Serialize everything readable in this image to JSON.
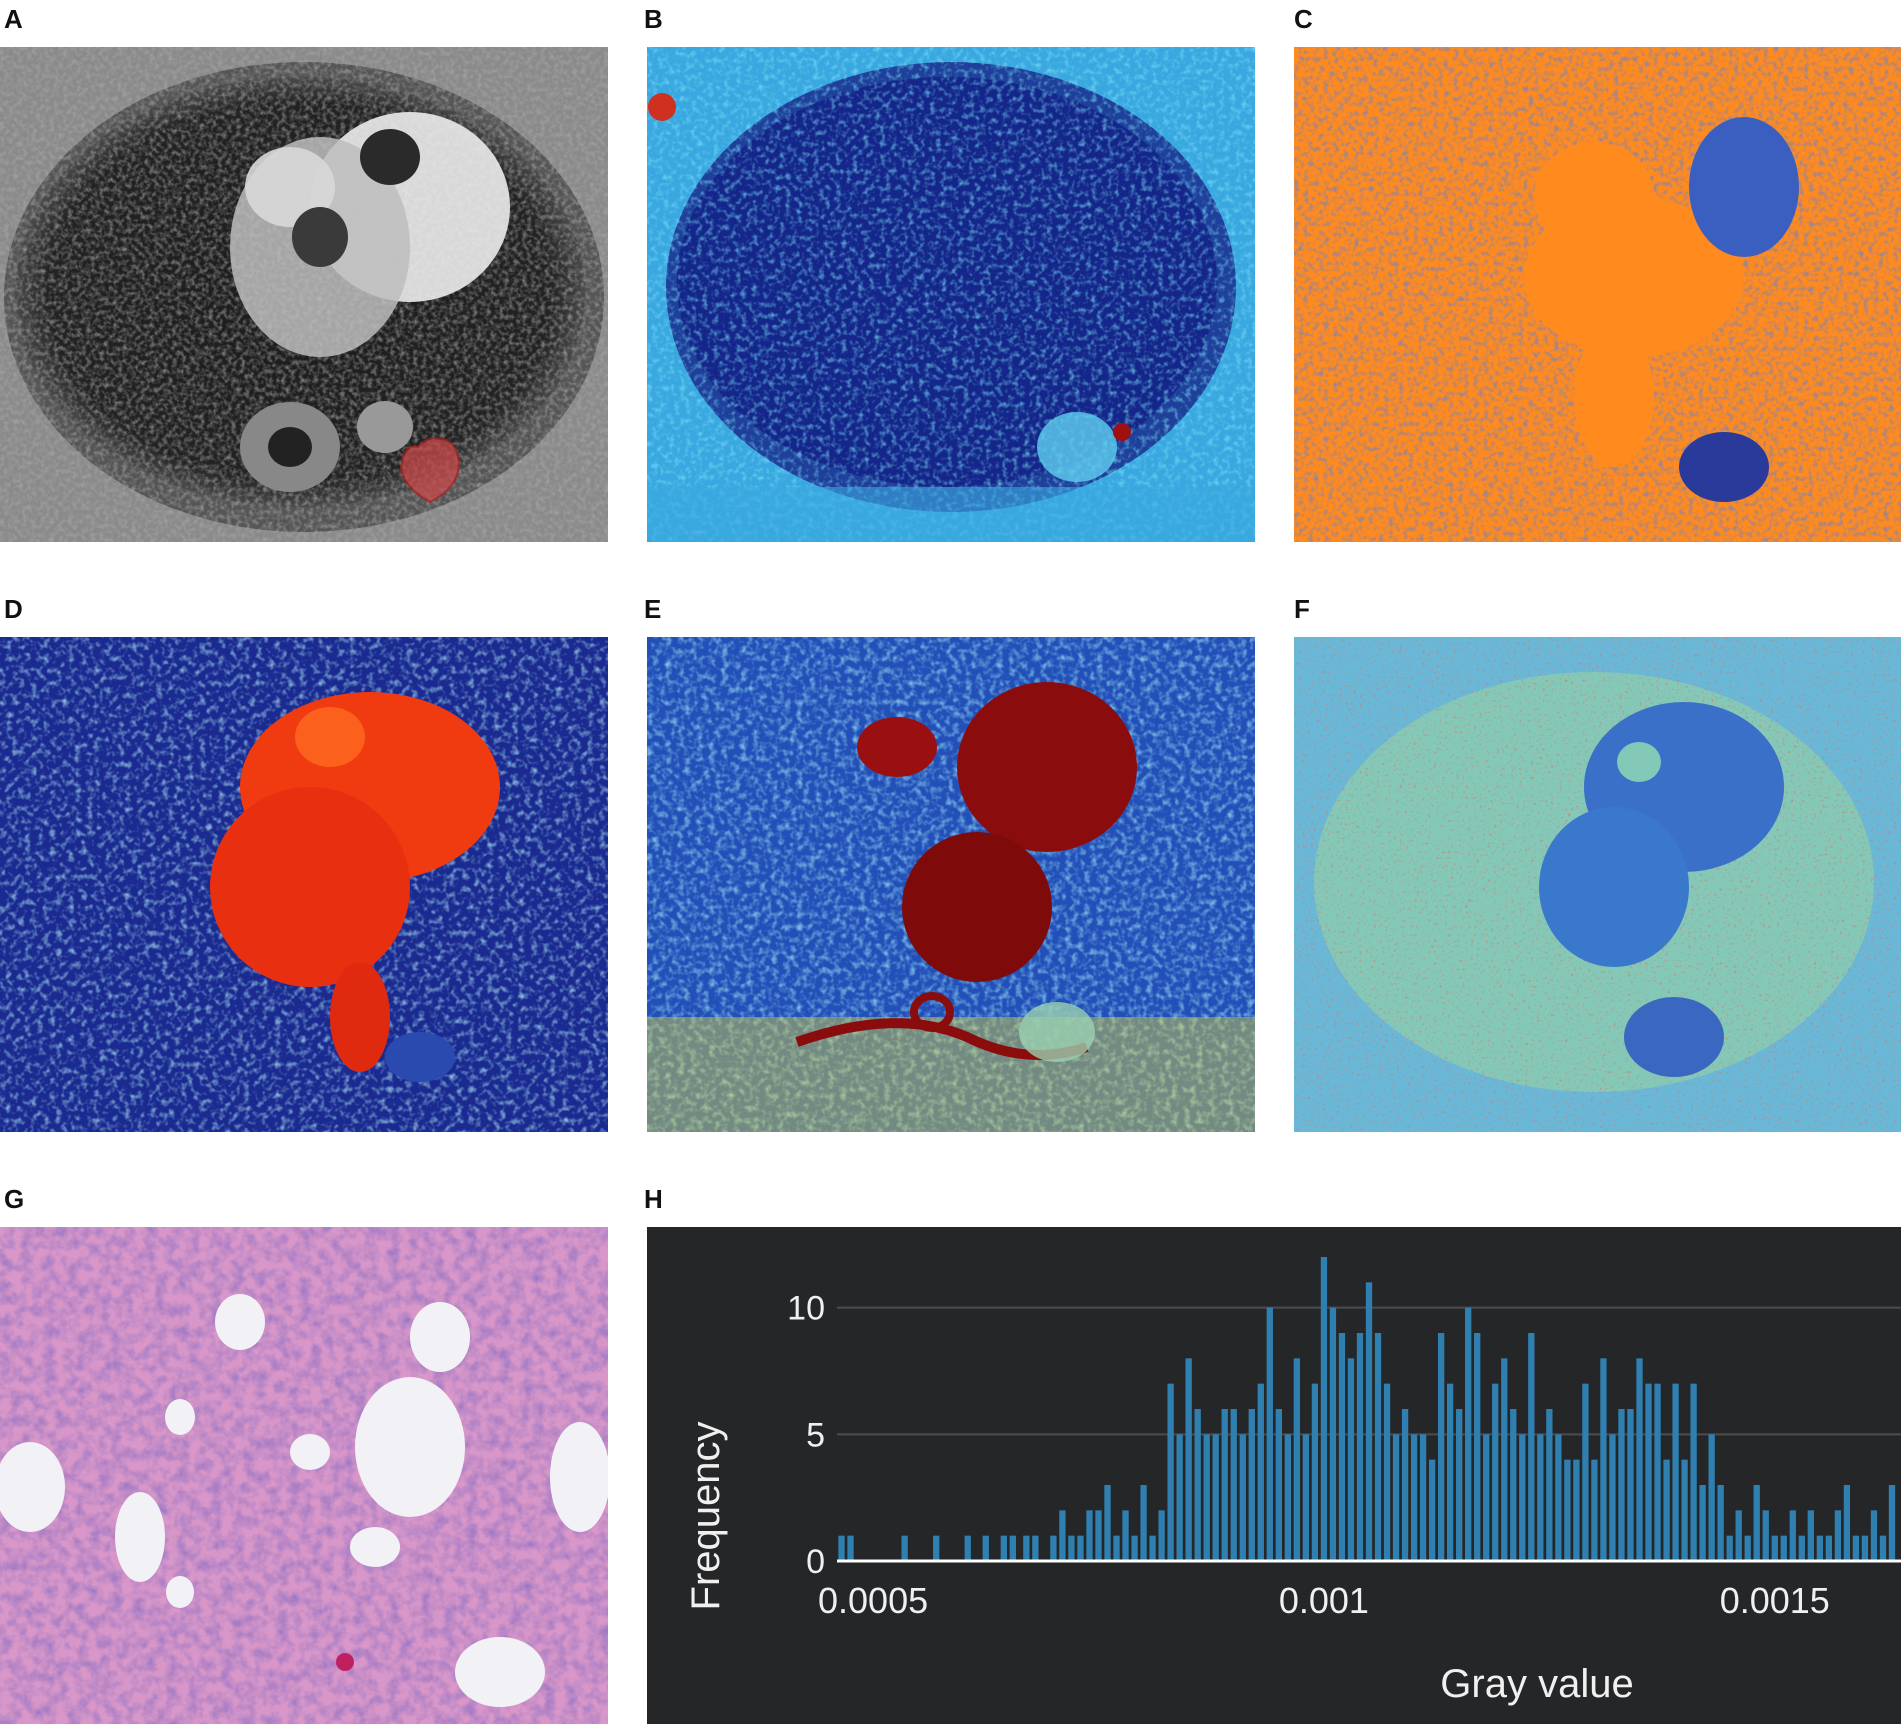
{
  "panels": {
    "a": {
      "label": "A",
      "image": "mri-axial-grayscale-with-red-lesion-roi"
    },
    "b": {
      "label": "B",
      "image": "parametric-map-jet-mostly-blue"
    },
    "c": {
      "label": "C",
      "image": "parametric-map-orange-blue"
    },
    "d": {
      "label": "D",
      "image": "parametric-map-jet-red-center"
    },
    "e": {
      "label": "E",
      "image": "parametric-map-jet-dark-red-center"
    },
    "f": {
      "label": "F",
      "image": "parametric-map-cyan-blue-noise"
    },
    "g": {
      "label": "G",
      "image": "histopathology-he-stain"
    },
    "h": {
      "label": "H",
      "image": "histogram-chart"
    }
  },
  "chart_data": {
    "type": "bar",
    "title": "",
    "xlabel": "Gray value",
    "ylabel": "Frequency",
    "xlim": [
      0.00046,
      0.00164
    ],
    "ylim": [
      0,
      12
    ],
    "x_ticks": [
      {
        "value": 0.0005,
        "label": "0.0005"
      },
      {
        "value": 0.001,
        "label": "0.001"
      },
      {
        "value": 0.0015,
        "label": "0.0015"
      }
    ],
    "y_ticks": [
      {
        "value": 0,
        "label": "0"
      },
      {
        "value": 5,
        "label": "5"
      },
      {
        "value": 10,
        "label": "10"
      }
    ],
    "grid": true,
    "bar_color": "#2f7fb0",
    "background": "#252628",
    "bin_width": 7e-06,
    "bins": [
      [
        0.000465,
        1
      ],
      [
        0.000475,
        1
      ],
      [
        0.000535,
        1
      ],
      [
        0.00057,
        1
      ],
      [
        0.000645,
        1
      ],
      [
        0.000655,
        1
      ],
      [
        0.00067,
        1
      ],
      [
        0.00068,
        1
      ],
      [
        0.0007,
        1
      ],
      [
        0.00071,
        2
      ],
      [
        0.00072,
        1
      ],
      [
        0.00073,
        1
      ],
      [
        0.00074,
        2
      ],
      [
        0.00075,
        2
      ],
      [
        0.00076,
        3
      ],
      [
        0.00077,
        1
      ],
      [
        0.00078,
        2
      ],
      [
        0.00079,
        1
      ],
      [
        0.0008,
        3
      ],
      [
        0.00081,
        1
      ],
      [
        0.00082,
        2
      ],
      [
        0.00083,
        7
      ],
      [
        0.00084,
        5
      ],
      [
        0.00085,
        8
      ],
      [
        0.00086,
        6
      ],
      [
        0.00087,
        5
      ],
      [
        0.00088,
        5
      ],
      [
        0.00089,
        6
      ],
      [
        0.0009,
        6
      ],
      [
        0.00091,
        5
      ],
      [
        0.00092,
        6
      ],
      [
        0.00093,
        7
      ],
      [
        0.00094,
        10
      ],
      [
        0.00095,
        6
      ],
      [
        0.00096,
        5
      ],
      [
        0.00097,
        8
      ],
      [
        0.00098,
        5
      ],
      [
        0.00099,
        7
      ],
      [
        0.001,
        12
      ],
      [
        0.00101,
        10
      ],
      [
        0.00102,
        9
      ],
      [
        0.00103,
        8
      ],
      [
        0.00104,
        9
      ],
      [
        0.00105,
        11
      ],
      [
        0.00106,
        9
      ],
      [
        0.00107,
        7
      ],
      [
        0.00108,
        5
      ],
      [
        0.00109,
        6
      ],
      [
        0.0011,
        5
      ],
      [
        0.00111,
        5
      ],
      [
        0.00112,
        4
      ],
      [
        0.00113,
        9
      ],
      [
        0.00114,
        7
      ],
      [
        0.00115,
        6
      ],
      [
        0.00116,
        10
      ],
      [
        0.00117,
        9
      ],
      [
        0.00118,
        5
      ],
      [
        0.00119,
        7
      ],
      [
        0.0012,
        8
      ],
      [
        0.00121,
        6
      ],
      [
        0.00122,
        5
      ],
      [
        0.00123,
        9
      ],
      [
        0.00124,
        5
      ],
      [
        0.00125,
        6
      ],
      [
        0.00126,
        5
      ],
      [
        0.00127,
        4
      ],
      [
        0.00128,
        4
      ],
      [
        0.00129,
        7
      ],
      [
        0.0013,
        4
      ],
      [
        0.00131,
        8
      ],
      [
        0.00132,
        5
      ],
      [
        0.00133,
        6
      ],
      [
        0.00134,
        6
      ],
      [
        0.00135,
        8
      ],
      [
        0.00136,
        7
      ],
      [
        0.00137,
        7
      ],
      [
        0.00138,
        4
      ],
      [
        0.00139,
        7
      ],
      [
        0.0014,
        4
      ],
      [
        0.00141,
        7
      ],
      [
        0.00142,
        3
      ],
      [
        0.00143,
        5
      ],
      [
        0.00144,
        3
      ],
      [
        0.00145,
        1
      ],
      [
        0.00146,
        2
      ],
      [
        0.00147,
        1
      ],
      [
        0.00148,
        3
      ],
      [
        0.00149,
        2
      ],
      [
        0.0015,
        1
      ],
      [
        0.00151,
        1
      ],
      [
        0.00152,
        2
      ],
      [
        0.00153,
        1
      ],
      [
        0.00154,
        2
      ],
      [
        0.00155,
        1
      ],
      [
        0.00156,
        1
      ],
      [
        0.00157,
        2
      ],
      [
        0.00158,
        3
      ],
      [
        0.00159,
        1
      ],
      [
        0.0016,
        1
      ],
      [
        0.00161,
        2
      ],
      [
        0.00162,
        1
      ],
      [
        0.00163,
        3
      ],
      [
        0.000625,
        1
      ],
      [
        0.000605,
        1
      ]
    ]
  }
}
